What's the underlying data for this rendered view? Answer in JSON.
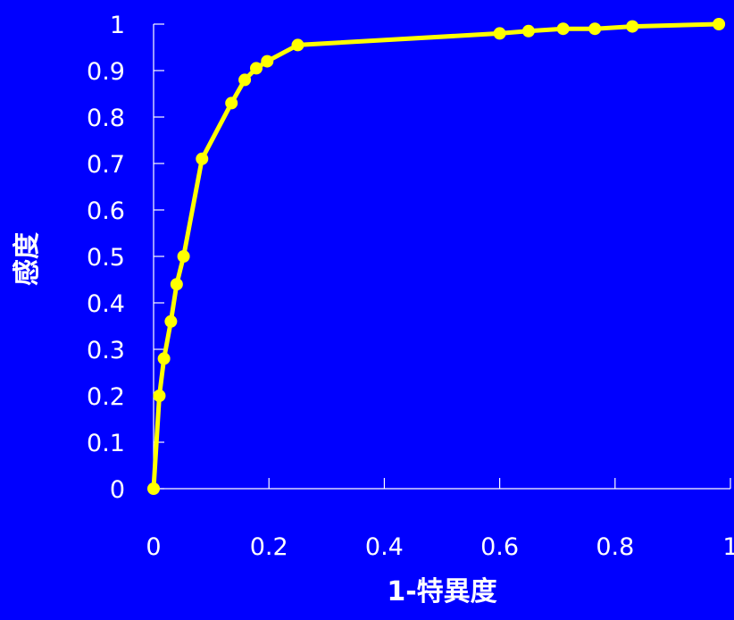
{
  "chart_data": {
    "type": "line",
    "xlabel": "1-特異度",
    "ylabel": "感度",
    "xlim": [
      0,
      1
    ],
    "ylim": [
      0,
      1
    ],
    "xticks": [
      "0",
      "0.2",
      "0.4",
      "0.6",
      "0.8",
      "1"
    ],
    "yticks": [
      "0",
      "0.1",
      "0.2",
      "0.3",
      "0.4",
      "0.5",
      "0.6",
      "0.7",
      "0.8",
      "0.9",
      "1"
    ],
    "grid": false,
    "legend": "none",
    "colors": {
      "background": "#0000ff",
      "series": "#ffff00",
      "axis": "#ffffff",
      "text": "#ffffff"
    },
    "series": [
      {
        "x": [
          0,
          0.01,
          0.018,
          0.03,
          0.04,
          0.052,
          0.084,
          0.135,
          0.158,
          0.178,
          0.197,
          0.25,
          0.6,
          0.65,
          0.71,
          0.765,
          0.83,
          0.98
        ],
        "y": [
          0,
          0.2,
          0.28,
          0.36,
          0.44,
          0.5,
          0.71,
          0.83,
          0.88,
          0.905,
          0.92,
          0.955,
          0.98,
          0.985,
          0.99,
          0.99,
          0.995,
          1.0
        ]
      }
    ]
  }
}
